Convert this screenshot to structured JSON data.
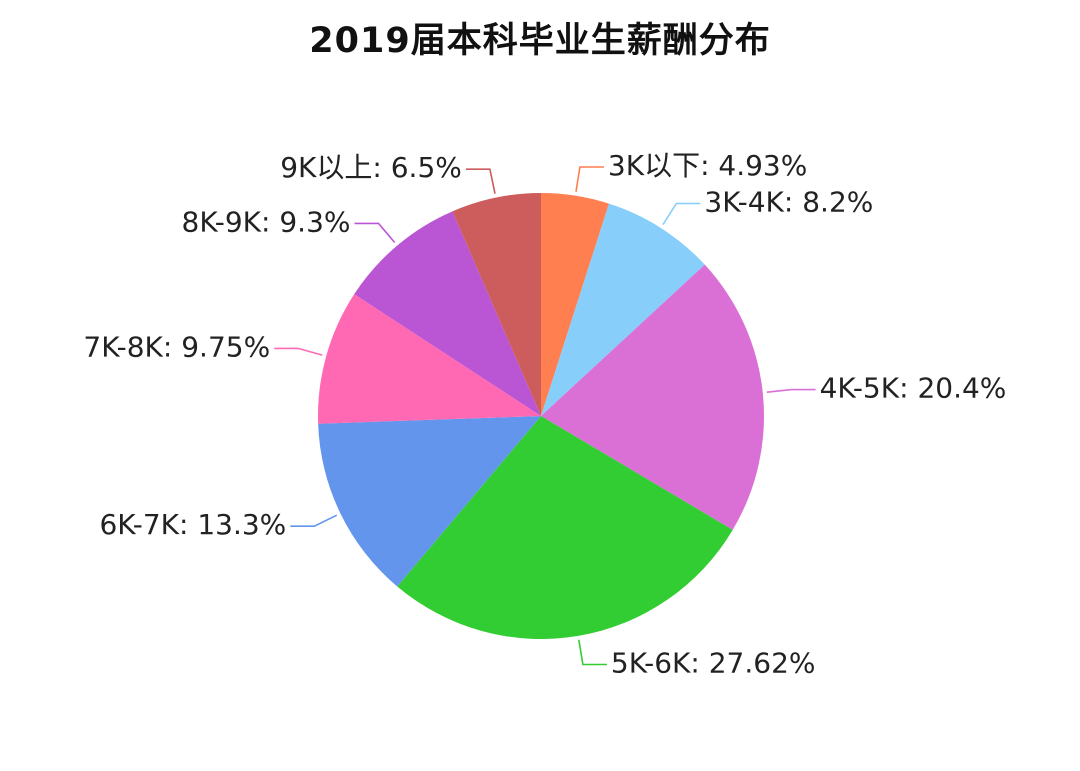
{
  "chart_data": {
    "type": "pie",
    "title": "2019届本科毕业生薪酬分布",
    "slices": [
      {
        "label": "3K以下",
        "value": 4.93,
        "display": "4.93%",
        "color": "#FF7F50"
      },
      {
        "label": "3K-4K",
        "value": 8.2,
        "display": "8.2%",
        "color": "#87CEFA"
      },
      {
        "label": "4K-5K",
        "value": 20.4,
        "display": "20.4%",
        "color": "#DA70D6"
      },
      {
        "label": "5K-6K",
        "value": 27.62,
        "display": "27.62%",
        "color": "#32CD32"
      },
      {
        "label": "6K-7K",
        "value": 13.3,
        "display": "13.3%",
        "color": "#6495ED"
      },
      {
        "label": "7K-8K",
        "value": 9.75,
        "display": "9.75%",
        "color": "#FF69B4"
      },
      {
        "label": "8K-9K",
        "value": 9.3,
        "display": "9.3%",
        "color": "#BA55D3"
      },
      {
        "label": "9K以上",
        "value": 6.5,
        "display": "6.5%",
        "color": "#CD5C5C"
      }
    ],
    "start_position": "top",
    "direction": "clockwise",
    "legend": "none"
  }
}
